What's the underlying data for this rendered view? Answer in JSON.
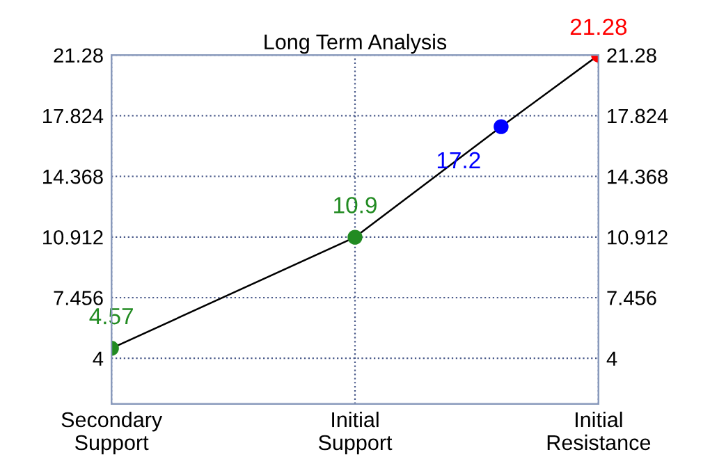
{
  "chart_data": {
    "type": "line",
    "title": "Long Term Analysis",
    "categories": [
      "Secondary\nSupport",
      null,
      null,
      null,
      null,
      "Initial\nSupport",
      null,
      null,
      null,
      null,
      "Initial\nResistance"
    ],
    "series": [
      {
        "color": "#000000",
        "colors": [
          "#228b22",
          null,
          null,
          null,
          null,
          "#228b22",
          null,
          null,
          "#0000ff",
          null,
          "#ff0000"
        ],
        "values": [
          4.57,
          null,
          null,
          null,
          null,
          10.9,
          null,
          null,
          17.2,
          null,
          21.28
        ]
      }
    ],
    "data_labels": true,
    "marker": "circle",
    "line_style": "solid",
    "grid": true,
    "ylim": [
      1.4,
      21.28
    ],
    "yticks": [
      4,
      7.456,
      10.912,
      14.368,
      17.824,
      21.28
    ],
    "y2lim": [
      1.4,
      21.28
    ],
    "y2ticks": [
      4,
      7.456,
      10.912,
      14.368,
      17.824,
      21.28
    ]
  }
}
